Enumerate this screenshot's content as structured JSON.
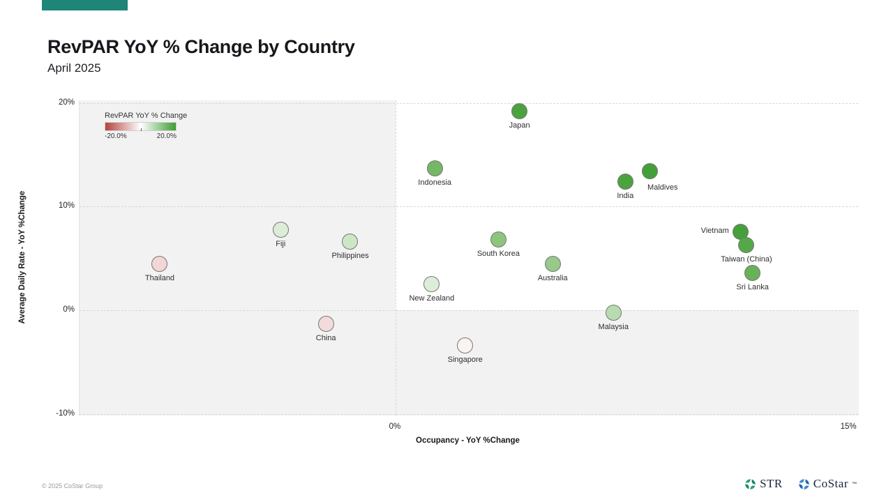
{
  "brand": {
    "bar_color": "#1e8578"
  },
  "header": {
    "title": "RevPAR YoY % Change by Country",
    "subtitle": "April 2025"
  },
  "legend": {
    "title": "RevPAR YoY % Change",
    "min_label": "-20.0%",
    "max_label": "20.0%",
    "min_color": "#b4423e",
    "mid_color": "#ffffff",
    "max_color": "#3f9c35"
  },
  "chart_data": {
    "type": "scatter",
    "xlabel": "Occupancy - YoY %Change",
    "ylabel": "Average Daily Rate - YoY %Change",
    "xlim": [
      -10.45,
      15.32
    ],
    "ylim": [
      -10.15,
      20.25
    ],
    "x_ticks": [
      {
        "value": 0,
        "label": "0%"
      },
      {
        "value": 15,
        "label": "15%"
      }
    ],
    "y_ticks": [
      {
        "value": 20,
        "label": "20%"
      },
      {
        "value": 10,
        "label": "10%"
      },
      {
        "value": 0,
        "label": "0%"
      },
      {
        "value": -10,
        "label": "-10%"
      }
    ],
    "grid": "dashed",
    "quadrant_shading": {
      "negative_region_color": "#f2f2f2",
      "positive_region_color": "#ffffff"
    },
    "color_encoding": {
      "field": "RevPAR YoY % Change",
      "min": -20,
      "max": 20
    },
    "points": [
      {
        "country": "Japan",
        "x": 4.1,
        "y": 19.2,
        "color": "#4ba33e",
        "label_anchor": "below"
      },
      {
        "country": "Indonesia",
        "x": 1.3,
        "y": 13.7,
        "color": "#74b765",
        "label_anchor": "below"
      },
      {
        "country": "India",
        "x": 7.6,
        "y": 12.4,
        "color": "#4ba33e",
        "label_anchor": "below"
      },
      {
        "country": "Maldives",
        "x": 8.4,
        "y": 13.4,
        "color": "#43a039",
        "label_anchor": "below-right"
      },
      {
        "country": "Fiji",
        "x": -3.8,
        "y": 7.8,
        "color": "#dcecd7",
        "label_anchor": "below"
      },
      {
        "country": "Philippines",
        "x": -1.5,
        "y": 6.6,
        "color": "#cde6c7",
        "label_anchor": "below"
      },
      {
        "country": "Thailand",
        "x": -7.8,
        "y": 4.5,
        "color": "#f3d6d6",
        "label_anchor": "below"
      },
      {
        "country": "South Korea",
        "x": 3.4,
        "y": 6.8,
        "color": "#8dc57f",
        "label_anchor": "below"
      },
      {
        "country": "Australia",
        "x": 5.2,
        "y": 4.5,
        "color": "#97c989",
        "label_anchor": "below"
      },
      {
        "country": "New Zealand",
        "x": 1.2,
        "y": 2.5,
        "color": "#ddeed8",
        "label_anchor": "below"
      },
      {
        "country": "Vietnam",
        "x": 11.4,
        "y": 7.6,
        "color": "#44a03b",
        "label_anchor": "left"
      },
      {
        "country": "Taiwan (China)",
        "x": 11.6,
        "y": 6.3,
        "color": "#54a848",
        "label_anchor": "below"
      },
      {
        "country": "Sri Lanka",
        "x": 11.8,
        "y": 3.6,
        "color": "#68b25a",
        "label_anchor": "below"
      },
      {
        "country": "Malaysia",
        "x": 7.2,
        "y": -0.2,
        "color": "#b9dcaf",
        "label_anchor": "below"
      },
      {
        "country": "China",
        "x": -2.3,
        "y": -1.3,
        "color": "#f4dbdb",
        "label_anchor": "below"
      },
      {
        "country": "Singapore",
        "x": 2.3,
        "y": -3.4,
        "color": "#fbf2f2",
        "label_anchor": "below"
      }
    ]
  },
  "footer": {
    "copyright": "© 2025 CoStar Group",
    "logos": {
      "str_label": "STR",
      "costar_label": "CoStar",
      "costar_tm": "™",
      "str_color": "#1b8374",
      "str_color2": "#2aa273",
      "costar_color": "#1f66b5",
      "costar_color2": "#3a8ad0"
    }
  }
}
